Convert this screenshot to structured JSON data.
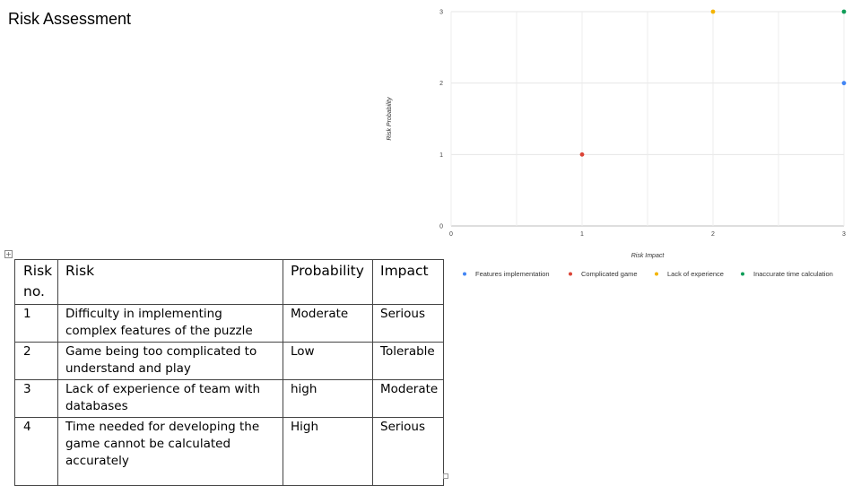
{
  "slide": {
    "title": "Risk Assessment"
  },
  "table": {
    "handle_icon": "move-handle-icon",
    "headers": [
      "Risk no.",
      "Risk",
      "Probability",
      "Impact"
    ],
    "rows": [
      {
        "no": "1",
        "risk": "Difficulty in implementing  complex features of the puzzle",
        "probability": "Moderate",
        "impact": "Serious"
      },
      {
        "no": "2",
        "risk": "Game being too complicated to understand and play",
        "probability": "Low",
        "impact": "Tolerable"
      },
      {
        "no": "3",
        "risk": "Lack of experience of team with databases",
        "probability": "high",
        "impact": "Moderate"
      },
      {
        "no": "4",
        "risk": "Time needed for developing the game cannot be calculated accurately",
        "probability": "High",
        "impact": "Serious"
      }
    ]
  },
  "chart_data": {
    "type": "scatter",
    "title": "",
    "xlabel": "Risk Impact",
    "ylabel": "Risk Probability",
    "xlim": [
      0,
      3
    ],
    "ylim": [
      0,
      3
    ],
    "xticks": [
      "0",
      "1",
      "2",
      "3"
    ],
    "yticks": [
      "0",
      "1",
      "2",
      "3"
    ],
    "grid": true,
    "legend_position": "bottom",
    "series": [
      {
        "name": "Features implementation",
        "color": "#4285f4",
        "points": [
          {
            "x": 3,
            "y": 2
          }
        ]
      },
      {
        "name": "Complicated game",
        "color": "#db4437",
        "points": [
          {
            "x": 1,
            "y": 1
          }
        ]
      },
      {
        "name": "Lack of experience",
        "color": "#f4b400",
        "points": [
          {
            "x": 2,
            "y": 3
          }
        ]
      },
      {
        "name": "Inaccurate time calculation",
        "color": "#0f9d58",
        "points": [
          {
            "x": 3,
            "y": 3
          }
        ]
      }
    ]
  }
}
